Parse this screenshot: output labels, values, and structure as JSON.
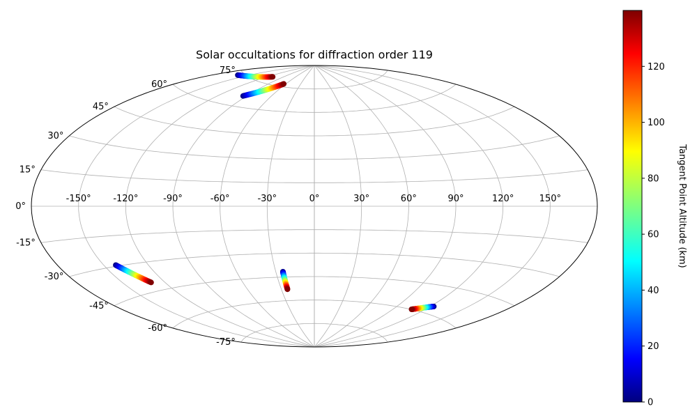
{
  "chart_data": {
    "type": "scatter",
    "projection": "aitoff",
    "title": "Solar occultations for diffraction order 119",
    "grid": true,
    "longitude_ticks": [
      "-150°",
      "-120°",
      "-90°",
      "-60°",
      "-30°",
      "0°",
      "30°",
      "60°",
      "90°",
      "120°",
      "150°"
    ],
    "latitude_ticks": [
      "75°",
      "60°",
      "45°",
      "30°",
      "15°",
      "0°",
      "-15°",
      "-30°",
      "-45°",
      "-60°",
      "-75°"
    ],
    "colorbar": {
      "label": "Tangent Point Altitude (km)",
      "range": [
        0,
        140
      ],
      "ticks": [
        "0",
        "20",
        "40",
        "60",
        "80",
        "100",
        "120"
      ],
      "colormap": "jet"
    },
    "series": [
      {
        "lon_start": -161,
        "lat_start": 73.6,
        "alt_start": 0,
        "lon_end": -111,
        "lat_end": 79.0,
        "alt_end": 140
      },
      {
        "lon_start": -94,
        "lat_start": 66.3,
        "alt_start": 0,
        "lon_end": -64,
        "lat_end": 76.8,
        "alt_end": 140
      },
      {
        "lon_start": -142,
        "lat_start": -29.4,
        "alt_start": 0,
        "lon_end": -130,
        "lat_end": -40.4,
        "alt_end": 140
      },
      {
        "lon_start": -24.5,
        "lat_start": -41.6,
        "alt_start": 0,
        "lon_end": -24.5,
        "lat_end": -52.8,
        "alt_end": 140
      },
      {
        "lon_start": 123,
        "lat_start": -56.0,
        "alt_start": 0,
        "lon_end": 108,
        "lat_end": -59.9,
        "alt_end": 140
      }
    ]
  }
}
